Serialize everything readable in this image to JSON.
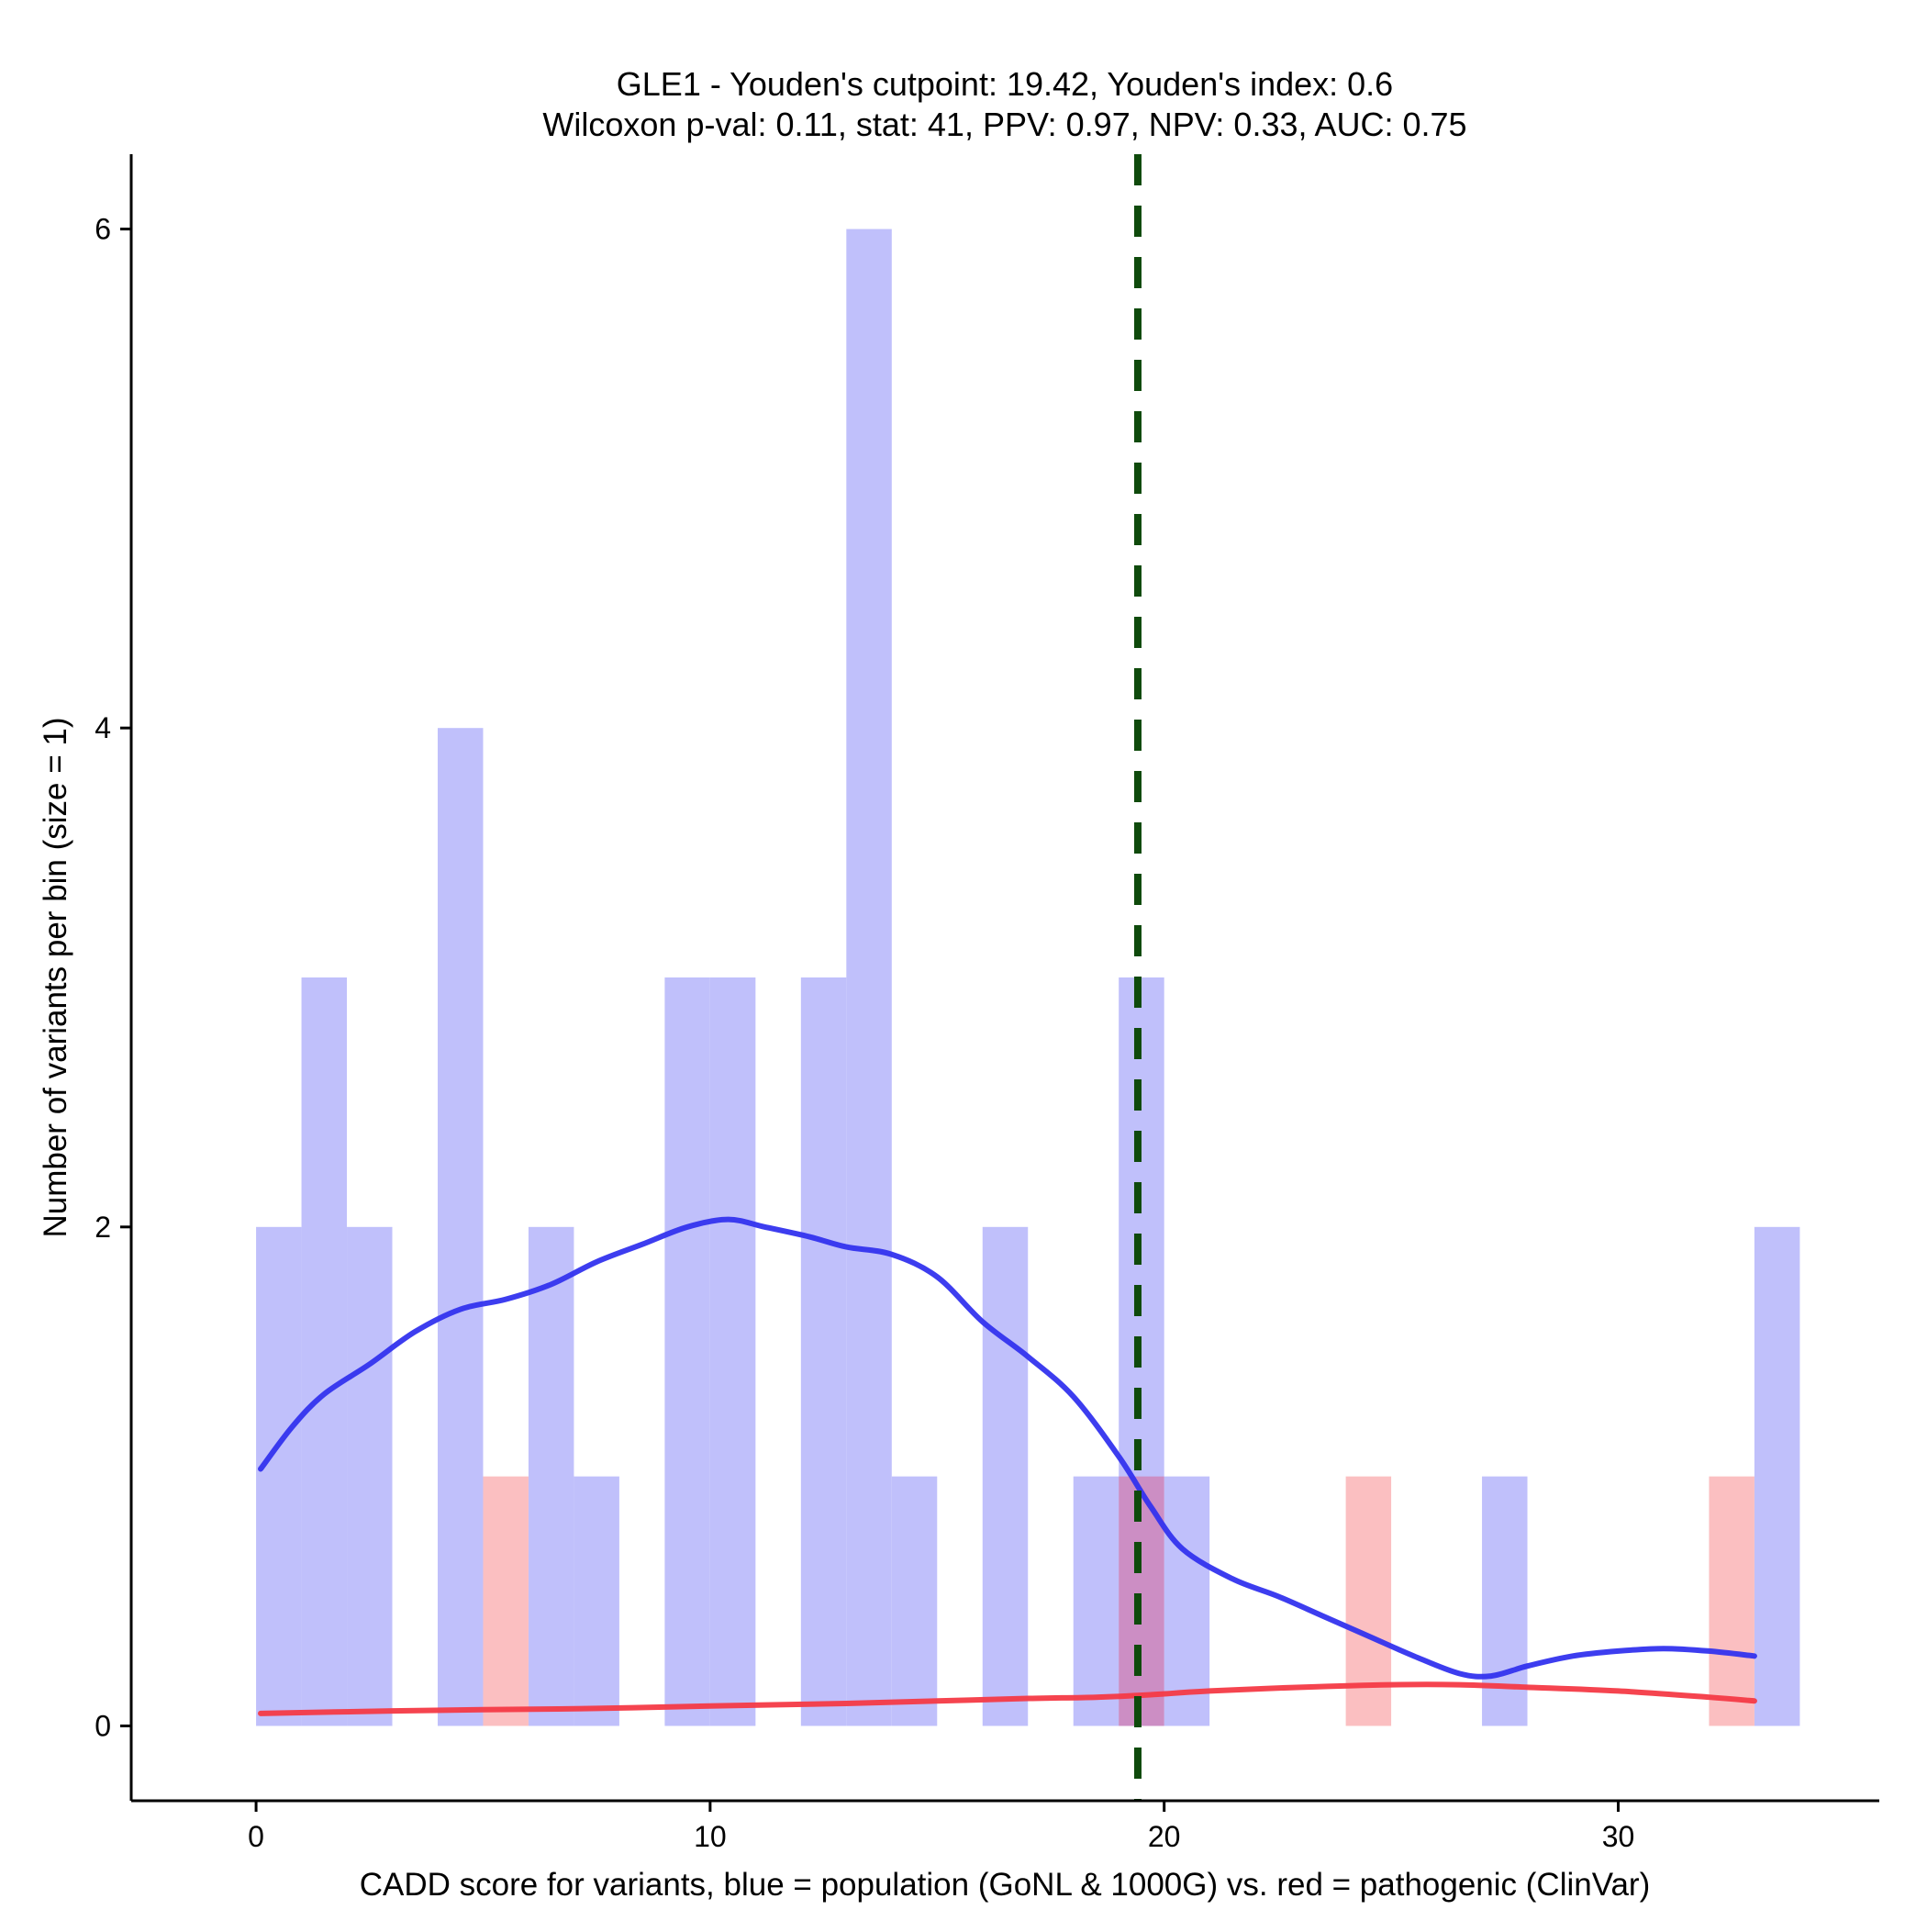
{
  "chart_data": {
    "type": "histogram-with-density",
    "title_line1": "GLE1 - Youden's cutpoint: 19.42, Youden's index: 0.6",
    "title_line2": "Wilcoxon p-val: 0.11, stat: 41, PPV: 0.97, NPV: 0.33, AUC: 0.75",
    "xlabel": "CADD score for variants, blue = population (GoNL & 1000G) vs. red = pathogenic (ClinVar)",
    "ylabel": "Number of variants per bin (size = 1)",
    "xlim": [
      -2.75,
      35.75
    ],
    "ylim": [
      -0.3,
      6.3
    ],
    "xticks": [
      0,
      10,
      20,
      30
    ],
    "xtick_labels": [
      "0",
      "10",
      "20",
      "30"
    ],
    "yticks": [
      0,
      2,
      4,
      6
    ],
    "ytick_labels": [
      "0",
      "2",
      "4",
      "6"
    ],
    "bin_width": 1,
    "cutpoint": 19.42,
    "colors": {
      "population_bar": "#c0c0fb",
      "pathogenic_bar": "#fbbfc1",
      "overlap_bar": "#cc8ec4",
      "population_line": "#3333ee",
      "pathogenic_line": "#f43a46",
      "cutpoint_line": "#0f4a0c"
    },
    "population_bins": [
      {
        "start": 0,
        "count": 2
      },
      {
        "start": 1,
        "count": 3
      },
      {
        "start": 2,
        "count": 2
      },
      {
        "start": 4,
        "count": 4
      },
      {
        "start": 6,
        "count": 2
      },
      {
        "start": 7,
        "count": 1
      },
      {
        "start": 9,
        "count": 3
      },
      {
        "start": 10,
        "count": 3
      },
      {
        "start": 12,
        "count": 3
      },
      {
        "start": 13,
        "count": 6
      },
      {
        "start": 14,
        "count": 1
      },
      {
        "start": 16,
        "count": 2
      },
      {
        "start": 18,
        "count": 1
      },
      {
        "start": 19,
        "count": 3
      },
      {
        "start": 20,
        "count": 1
      },
      {
        "start": 27,
        "count": 1
      },
      {
        "start": 33,
        "count": 2
      }
    ],
    "pathogenic_bins": [
      {
        "start": 5,
        "count": 1
      },
      {
        "start": 19,
        "count": 1
      },
      {
        "start": 24,
        "count": 1
      },
      {
        "start": 32,
        "count": 1
      }
    ],
    "population_density": [
      [
        0.1,
        1.03
      ],
      [
        0.8,
        1.2
      ],
      [
        1.5,
        1.33
      ],
      [
        2.5,
        1.45
      ],
      [
        3.5,
        1.58
      ],
      [
        4.5,
        1.67
      ],
      [
        5.5,
        1.71
      ],
      [
        6.5,
        1.77
      ],
      [
        7.5,
        1.86
      ],
      [
        8.5,
        1.93
      ],
      [
        9.5,
        2.0
      ],
      [
        10.4,
        2.03
      ],
      [
        11.2,
        2.0
      ],
      [
        12.2,
        1.96
      ],
      [
        13.0,
        1.92
      ],
      [
        14.0,
        1.89
      ],
      [
        15.0,
        1.8
      ],
      [
        16.0,
        1.62
      ],
      [
        17.0,
        1.48
      ],
      [
        18.0,
        1.32
      ],
      [
        19.0,
        1.08
      ],
      [
        19.7,
        0.88
      ],
      [
        20.4,
        0.71
      ],
      [
        21.5,
        0.59
      ],
      [
        22.5,
        0.52
      ],
      [
        23.5,
        0.44
      ],
      [
        24.5,
        0.36
      ],
      [
        25.5,
        0.28
      ],
      [
        26.5,
        0.21
      ],
      [
        27.2,
        0.2
      ],
      [
        28.0,
        0.24
      ],
      [
        29.0,
        0.28
      ],
      [
        30.0,
        0.3
      ],
      [
        31.0,
        0.31
      ],
      [
        32.0,
        0.3
      ],
      [
        33.0,
        0.28
      ]
    ],
    "pathogenic_density": [
      [
        0.1,
        0.05
      ],
      [
        3.0,
        0.06
      ],
      [
        5.0,
        0.065
      ],
      [
        7.5,
        0.07
      ],
      [
        10.0,
        0.08
      ],
      [
        13.0,
        0.09
      ],
      [
        15.0,
        0.1
      ],
      [
        17.0,
        0.11
      ],
      [
        18.5,
        0.115
      ],
      [
        19.7,
        0.125
      ],
      [
        21.0,
        0.14
      ],
      [
        23.0,
        0.155
      ],
      [
        25.0,
        0.165
      ],
      [
        26.5,
        0.165
      ],
      [
        28.0,
        0.155
      ],
      [
        30.0,
        0.14
      ],
      [
        32.0,
        0.115
      ],
      [
        33.0,
        0.1
      ]
    ]
  }
}
